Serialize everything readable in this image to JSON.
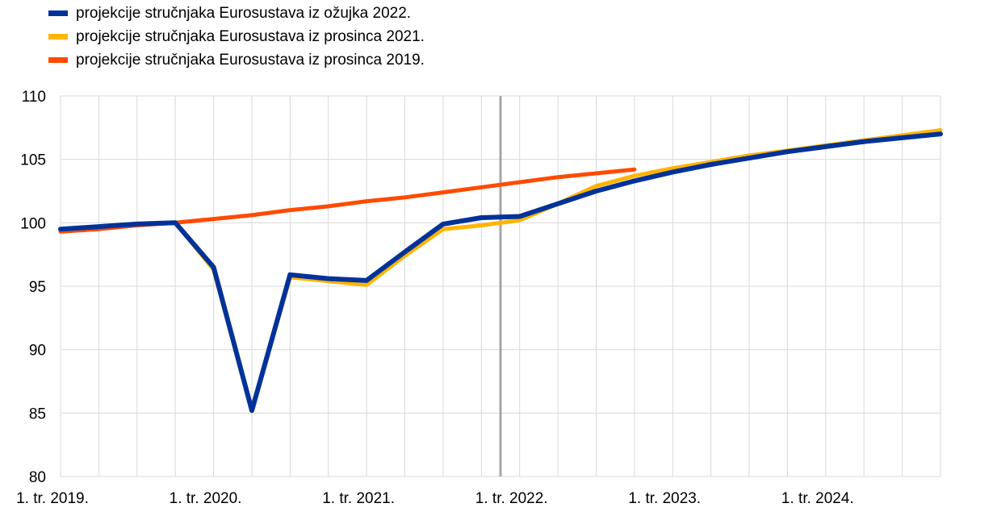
{
  "chart_data": {
    "type": "line",
    "title": "",
    "xlabel": "",
    "ylabel": "",
    "ylim": [
      80,
      110
    ],
    "yticks": [
      80,
      85,
      90,
      95,
      100,
      105,
      110
    ],
    "x": [
      "2019Q1",
      "2019Q2",
      "2019Q3",
      "2019Q4",
      "2020Q1",
      "2020Q2",
      "2020Q3",
      "2020Q4",
      "2021Q1",
      "2021Q2",
      "2021Q3",
      "2021Q4",
      "2022Q1",
      "2022Q2",
      "2022Q3",
      "2022Q4",
      "2023Q1",
      "2023Q2",
      "2023Q3",
      "2023Q4",
      "2024Q1",
      "2024Q2",
      "2024Q3",
      "2024Q4"
    ],
    "xtick_labels": [
      "1. tr. 2019.",
      "1. tr. 2020.",
      "1. tr. 2021.",
      "1. tr. 2022.",
      "1. tr. 2023.",
      "1. tr. 2024."
    ],
    "grid": true,
    "legend_position": "top-left",
    "vertical_marker_after": "2021Q4",
    "series": [
      {
        "name": "projekcije stručnjaka Eurosustava iz prosinca 2019.",
        "color": "#FF4B00",
        "values": [
          99.3,
          99.5,
          99.8,
          100.0,
          100.3,
          100.6,
          101.0,
          101.3,
          101.7,
          102.0,
          102.4,
          102.8,
          103.2,
          103.6,
          103.9,
          104.2,
          null,
          null,
          null,
          null,
          null,
          null,
          null,
          null
        ]
      },
      {
        "name": "projekcije stručnjaka Eurosustava iz prosinca 2021.",
        "color": "#FFB400",
        "values": [
          99.5,
          99.7,
          99.9,
          100.0,
          96.3,
          85.2,
          95.7,
          95.4,
          95.1,
          97.4,
          99.5,
          99.8,
          100.2,
          101.5,
          102.9,
          103.7,
          104.3,
          104.8,
          105.3,
          105.7,
          106.1,
          106.5,
          106.9,
          107.3
        ]
      },
      {
        "name": "projekcije stručnjaka Eurosustava iz ožujka 2022.",
        "color": "#003299",
        "values": [
          99.5,
          99.7,
          99.9,
          100.0,
          96.5,
          85.2,
          95.9,
          95.6,
          95.45,
          97.7,
          99.9,
          100.4,
          100.5,
          101.5,
          102.5,
          103.3,
          104.0,
          104.6,
          105.1,
          105.6,
          106.0,
          106.4,
          106.7,
          107.0
        ]
      }
    ],
    "legend_order": [
      2,
      1,
      0
    ]
  },
  "colors": {
    "grid": "#D9D9D9",
    "marker": "#A6A6A6"
  }
}
